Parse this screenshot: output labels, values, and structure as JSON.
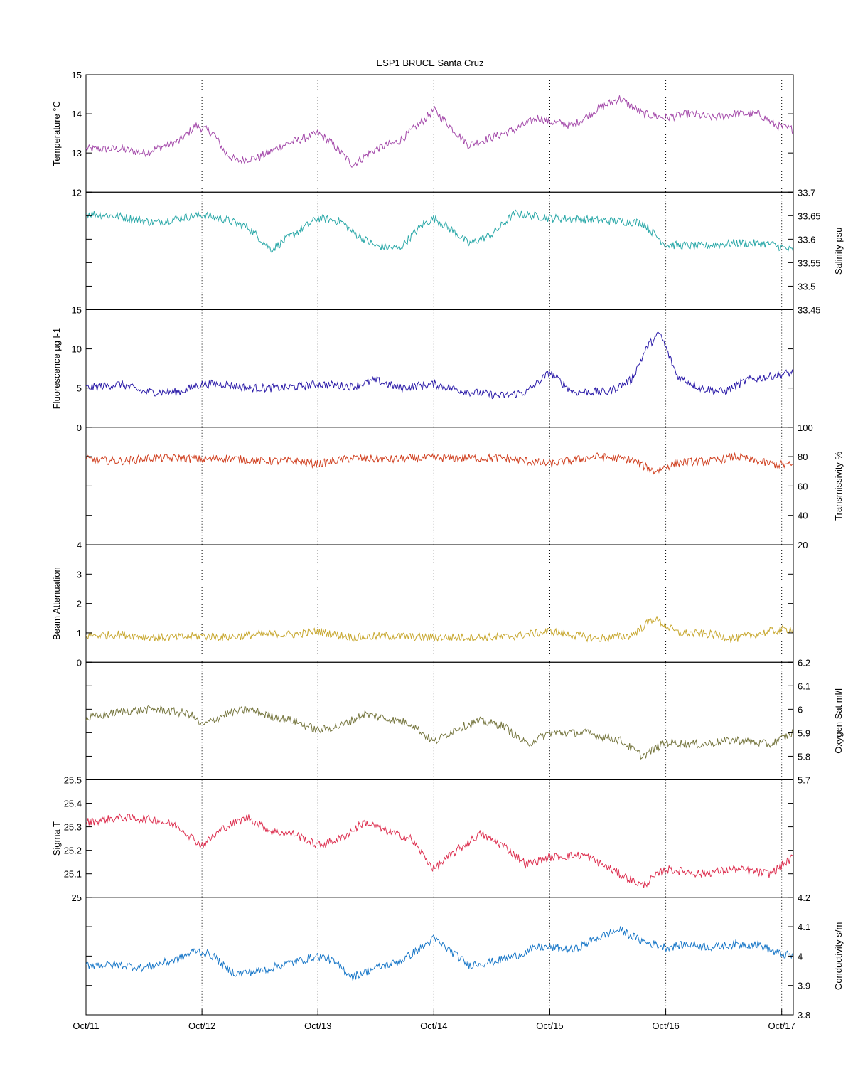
{
  "chart_data": {
    "type": "line",
    "title": "ESP1 BRUCE Santa Cruz",
    "x_tick_labels": [
      "Oct/11",
      "Oct/12",
      "Oct/13",
      "Oct/14",
      "Oct/15",
      "Oct/16",
      "Oct/17"
    ],
    "x_tick_values": [
      11,
      12,
      13,
      14,
      15,
      16,
      17
    ],
    "xlim": [
      11,
      17.1
    ],
    "grid": "vertical dotted lines at each day tick",
    "panels": [
      {
        "id": "temperature",
        "series_name": "Temperature",
        "ylabel": "Temperature °C",
        "axis_side": "left",
        "ylim": [
          12,
          15
        ],
        "tick_values": [
          12,
          13,
          14,
          15
        ],
        "tick_labels": [
          "12",
          "13",
          "14",
          "15"
        ],
        "color": "#a44aaa",
        "x": [
          11.0,
          11.3,
          11.5,
          11.8,
          11.95,
          12.1,
          12.2,
          12.3,
          12.5,
          12.7,
          12.9,
          13.0,
          13.1,
          13.3,
          13.5,
          13.7,
          13.9,
          14.0,
          14.1,
          14.3,
          14.5,
          14.7,
          14.9,
          15.0,
          15.2,
          15.4,
          15.6,
          15.8,
          16.0,
          16.2,
          16.4,
          16.6,
          16.8,
          16.95,
          17.1
        ],
        "y": [
          13.1,
          13.1,
          13.0,
          13.3,
          13.7,
          13.5,
          13.0,
          12.8,
          12.9,
          13.2,
          13.4,
          13.5,
          13.3,
          12.7,
          13.1,
          13.3,
          13.8,
          14.1,
          13.8,
          13.2,
          13.4,
          13.6,
          13.9,
          13.8,
          13.7,
          14.1,
          14.4,
          14.0,
          13.9,
          14.0,
          13.9,
          14.0,
          14.0,
          13.7,
          13.6
        ]
      },
      {
        "id": "salinity",
        "series_name": "Salinity",
        "ylabel": "Salinity psu",
        "axis_side": "right",
        "ylim": [
          33.45,
          33.7
        ],
        "tick_values": [
          33.45,
          33.5,
          33.55,
          33.6,
          33.65,
          33.7
        ],
        "tick_labels": [
          "33.45",
          "33.5",
          "33.55",
          "33.6",
          "33.65",
          "33.7"
        ],
        "color": "#2aa8a8",
        "x": [
          11.0,
          11.3,
          11.6,
          11.8,
          12.0,
          12.2,
          12.4,
          12.6,
          12.8,
          13.0,
          13.2,
          13.3,
          13.5,
          13.7,
          13.9,
          14.0,
          14.2,
          14.3,
          14.5,
          14.7,
          15.0,
          15.3,
          15.6,
          15.8,
          16.0,
          16.3,
          16.6,
          16.9,
          17.1
        ],
        "y": [
          33.655,
          33.648,
          33.635,
          33.645,
          33.652,
          33.642,
          33.625,
          33.578,
          33.612,
          33.645,
          33.638,
          33.615,
          33.585,
          33.58,
          33.63,
          33.645,
          33.612,
          33.59,
          33.61,
          33.655,
          33.645,
          33.642,
          33.638,
          33.635,
          33.588,
          33.585,
          33.592,
          33.59,
          33.575
        ]
      },
      {
        "id": "fluorescence",
        "series_name": "Fluorescence",
        "ylabel": "Fluorescence µg l-1",
        "axis_side": "left",
        "ylim": [
          0,
          15
        ],
        "tick_values": [
          0,
          5,
          10,
          15
        ],
        "tick_labels": [
          "0",
          "5",
          "10",
          "15"
        ],
        "color": "#2a1aa8",
        "x": [
          11.0,
          11.3,
          11.5,
          11.8,
          12.0,
          12.2,
          12.4,
          12.7,
          13.0,
          13.3,
          13.5,
          13.7,
          14.0,
          14.3,
          14.6,
          14.8,
          15.0,
          15.2,
          15.5,
          15.7,
          15.85,
          15.95,
          16.1,
          16.3,
          16.5,
          16.7,
          16.9,
          17.1
        ],
        "y": [
          5.0,
          5.5,
          4.5,
          4.5,
          5.5,
          5.5,
          5.0,
          5.0,
          5.5,
          5.2,
          6.0,
          5.0,
          5.5,
          4.5,
          4.0,
          4.5,
          7.0,
          4.5,
          4.5,
          6.0,
          10.5,
          12.0,
          6.5,
          5.0,
          4.5,
          6.0,
          6.5,
          7.0
        ]
      },
      {
        "id": "transmissivity",
        "series_name": "Transmissivity",
        "ylabel": "Transmissivity %",
        "axis_side": "right",
        "ylim": [
          20,
          100
        ],
        "tick_values": [
          20,
          40,
          60,
          80,
          100
        ],
        "tick_labels": [
          "20",
          "40",
          "60",
          "80",
          "100"
        ],
        "color": "#d04020",
        "x": [
          11.0,
          11.3,
          11.55,
          11.8,
          12.0,
          12.2,
          12.5,
          12.8,
          13.0,
          13.3,
          13.6,
          13.9,
          14.2,
          14.6,
          15.0,
          15.4,
          15.7,
          15.9,
          16.1,
          16.4,
          16.6,
          16.9,
          17.1
        ],
        "y": [
          78,
          77,
          79,
          79,
          78,
          79,
          77,
          77,
          75,
          79,
          78,
          79,
          79,
          79,
          75,
          80,
          78,
          70,
          76,
          77,
          80,
          75,
          74
        ]
      },
      {
        "id": "beam_attenuation",
        "series_name": "Beam Attenuation",
        "ylabel": "Beam Attenuation",
        "axis_side": "left",
        "ylim": [
          0,
          4
        ],
        "tick_values": [
          0,
          1,
          2,
          3,
          4
        ],
        "tick_labels": [
          "0",
          "1",
          "2",
          "3",
          "4"
        ],
        "color": "#c8a830",
        "x": [
          11.0,
          11.3,
          11.55,
          11.8,
          12.0,
          12.2,
          12.5,
          12.8,
          13.0,
          13.3,
          13.6,
          13.9,
          14.2,
          14.6,
          15.0,
          15.4,
          15.7,
          15.9,
          16.1,
          16.4,
          16.6,
          16.9,
          17.1
        ],
        "y": [
          0.9,
          0.95,
          0.85,
          0.85,
          0.9,
          0.85,
          0.95,
          0.95,
          1.05,
          0.85,
          0.9,
          0.85,
          0.85,
          0.85,
          1.05,
          0.8,
          0.9,
          1.5,
          1.0,
          0.95,
          0.8,
          1.05,
          1.15
        ]
      },
      {
        "id": "oxygen",
        "series_name": "Oxygen Sat",
        "ylabel": "Oxygen Sat ml/l",
        "axis_side": "right",
        "ylim": [
          5.7,
          6.2
        ],
        "tick_values": [
          5.7,
          5.8,
          5.9,
          6.0,
          6.1,
          6.2
        ],
        "tick_labels": [
          "5.7",
          "5.8",
          "5.9",
          "6",
          "6.1",
          "6.2"
        ],
        "color": "#777740",
        "x": [
          11.0,
          11.3,
          11.6,
          11.9,
          12.0,
          12.2,
          12.4,
          12.6,
          12.8,
          13.0,
          13.2,
          13.4,
          13.6,
          13.8,
          14.0,
          14.2,
          14.4,
          14.6,
          14.8,
          15.0,
          15.3,
          15.6,
          15.8,
          16.0,
          16.3,
          16.6,
          16.9,
          17.1
        ],
        "y": [
          5.96,
          5.99,
          6.0,
          5.98,
          5.93,
          5.98,
          6.0,
          5.97,
          5.95,
          5.91,
          5.93,
          5.98,
          5.96,
          5.94,
          5.86,
          5.92,
          5.95,
          5.93,
          5.85,
          5.9,
          5.9,
          5.87,
          5.8,
          5.86,
          5.85,
          5.87,
          5.85,
          5.9
        ]
      },
      {
        "id": "sigma_t",
        "series_name": "Sigma T",
        "ylabel": "Sigma T",
        "axis_side": "left",
        "ylim": [
          25,
          25.5
        ],
        "tick_values": [
          25,
          25.1,
          25.2,
          25.3,
          25.4,
          25.5
        ],
        "tick_labels": [
          "25",
          "25.1",
          "25.2",
          "25.3",
          "25.4",
          "25.5"
        ],
        "color": "#dd3050",
        "x": [
          11.0,
          11.3,
          11.6,
          11.8,
          12.0,
          12.2,
          12.4,
          12.6,
          12.8,
          13.0,
          13.2,
          13.4,
          13.6,
          13.8,
          14.0,
          14.2,
          14.4,
          14.6,
          14.8,
          15.0,
          15.3,
          15.6,
          15.8,
          16.0,
          16.3,
          16.6,
          16.9,
          17.1
        ],
        "y": [
          25.32,
          25.34,
          25.33,
          25.3,
          25.22,
          25.3,
          25.34,
          25.28,
          25.27,
          25.22,
          25.25,
          25.32,
          25.28,
          25.25,
          25.12,
          25.2,
          25.27,
          25.22,
          25.14,
          25.17,
          25.18,
          25.1,
          25.05,
          25.12,
          25.1,
          25.12,
          25.1,
          25.17
        ]
      },
      {
        "id": "conductivity",
        "series_name": "Conductivity",
        "ylabel": "Conductivity s/m",
        "axis_side": "right",
        "ylim": [
          3.8,
          4.2
        ],
        "tick_values": [
          3.8,
          3.9,
          4.0,
          4.1,
          4.2
        ],
        "tick_labels": [
          "3.8",
          "3.9",
          "4",
          "4.1",
          "4.2"
        ],
        "color": "#1a78c8",
        "x": [
          11.0,
          11.3,
          11.5,
          11.8,
          11.95,
          12.1,
          12.2,
          12.3,
          12.5,
          12.7,
          12.9,
          13.0,
          13.1,
          13.3,
          13.5,
          13.7,
          13.9,
          14.0,
          14.1,
          14.3,
          14.5,
          14.7,
          14.9,
          15.0,
          15.2,
          15.4,
          15.6,
          15.8,
          16.0,
          16.2,
          16.4,
          16.6,
          16.8,
          16.95,
          17.1
        ],
        "y": [
          3.97,
          3.97,
          3.96,
          3.99,
          4.02,
          4.0,
          3.96,
          3.94,
          3.95,
          3.97,
          3.99,
          4.0,
          3.99,
          3.93,
          3.96,
          3.98,
          4.03,
          4.06,
          4.03,
          3.97,
          3.98,
          4.0,
          4.03,
          4.03,
          4.02,
          4.06,
          4.09,
          4.05,
          4.03,
          4.04,
          4.03,
          4.04,
          4.04,
          4.01,
          4.0
        ]
      }
    ]
  }
}
